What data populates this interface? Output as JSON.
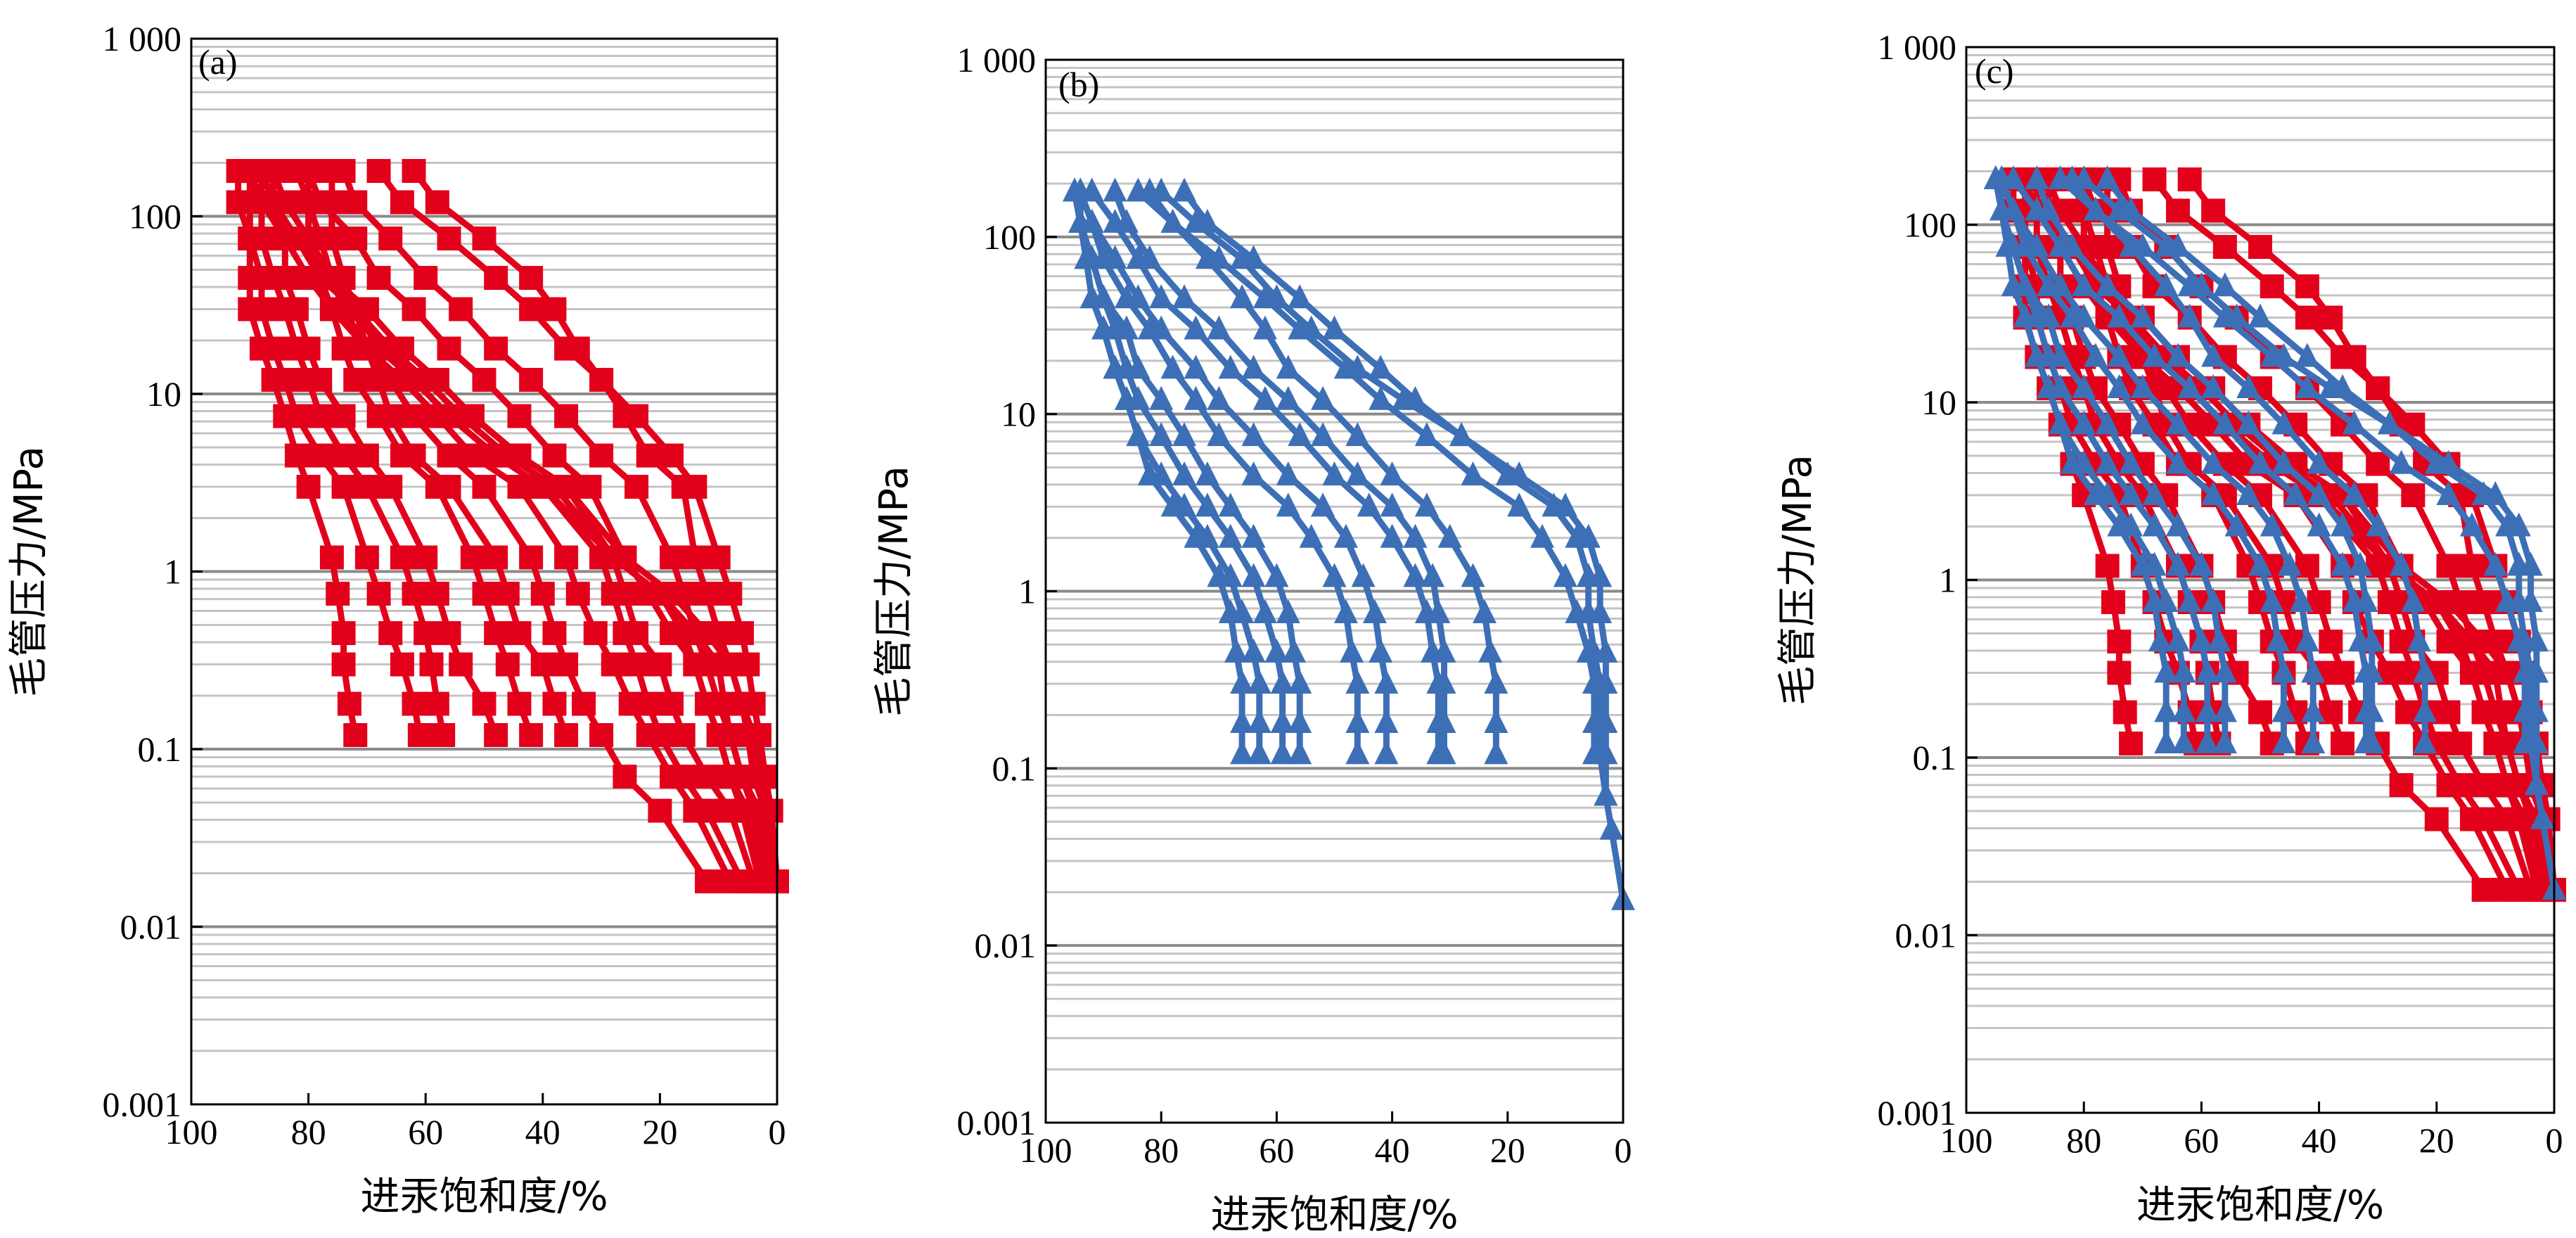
{
  "figure": {
    "colors": {
      "red_series": "#e3001b",
      "blue_series": "#3d6fb6"
    }
  },
  "chart_data": [
    {
      "type": "line",
      "panel_label": "(a)",
      "xlabel": "进汞饱和度/%",
      "ylabel": "毛管压力/MPa",
      "xlim": [
        100,
        0
      ],
      "ylim": [
        0.001,
        1000
      ],
      "y_scale": "log",
      "x_ticks": [
        "100",
        "80",
        "60",
        "40",
        "20",
        "0"
      ],
      "y_ticks": [
        "0.001",
        "0.01",
        "0.1",
        "1",
        "10",
        "100",
        "1 000"
      ],
      "grid": "horizontal",
      "marker": "square",
      "color": "#e3001b",
      "pressures": [
        0.018,
        0.045,
        0.07,
        0.12,
        0.18,
        0.3,
        0.45,
        0.75,
        1.2,
        3,
        4.5,
        7.5,
        12,
        18,
        30,
        45,
        75,
        120,
        180
      ],
      "series": [
        {
          "x": [
            0,
            2,
            4,
            5,
            6,
            8,
            10,
            12,
            14,
            16,
            22,
            26,
            30,
            34,
            38,
            42,
            50,
            58,
            62
          ]
        },
        {
          "x": [
            0,
            1,
            2,
            3,
            4,
            5,
            6,
            8,
            10,
            14,
            18,
            24,
            30,
            36,
            42,
            48,
            56,
            64,
            68
          ]
        },
        {
          "x": [
            1,
            3,
            6,
            8,
            10,
            12,
            14,
            16,
            18,
            24,
            30,
            36,
            42,
            48,
            54,
            60,
            66,
            72,
            74
          ]
        },
        {
          "x": [
            2,
            5,
            8,
            10,
            12,
            14,
            18,
            22,
            26,
            32,
            38,
            44,
            50,
            56,
            62,
            68,
            72,
            78,
            80
          ]
        },
        {
          "x": [
            4,
            8,
            12,
            16,
            18,
            20,
            24,
            26,
            28,
            36,
            44,
            52,
            58,
            64,
            70,
            76,
            80,
            84,
            86
          ]
        },
        {
          "x": [
            6,
            12,
            16,
            20,
            22,
            24,
            26,
            28,
            30,
            40,
            48,
            56,
            62,
            68,
            72,
            78,
            82,
            86,
            88
          ]
        },
        {
          "x": [
            2,
            4,
            6,
            8,
            9,
            10,
            14,
            20,
            28,
            38,
            46,
            54,
            60,
            66,
            72,
            76,
            80,
            84,
            86
          ]
        },
        {
          "x": [
            8,
            14,
            18,
            22,
            25,
            28,
            31,
            34,
            36,
            44,
            52,
            58,
            64,
            70,
            76,
            80,
            84,
            88,
            90
          ]
        },
        {
          "x": [
            0,
            2,
            3,
            4,
            6,
            8,
            12,
            18,
            26,
            36,
            44,
            52,
            58,
            64,
            70,
            76,
            82,
            88,
            91
          ]
        },
        {
          "x": [
            12,
            20,
            26,
            30,
            33,
            36,
            38,
            40,
            42,
            50,
            56,
            62,
            66,
            70,
            74,
            76,
            78,
            80,
            82
          ]
        },
        {
          "x": [
            3,
            6,
            8,
            10,
            12,
            14,
            16,
            20,
            28,
            40,
            48,
            56,
            62,
            66,
            72,
            76,
            82,
            86,
            88
          ]
        },
        {
          "x": [
            null,
            null,
            null,
            36,
            38,
            40,
            44,
            46,
            48,
            56,
            62,
            66,
            68,
            70,
            72,
            74,
            76,
            76,
            76
          ]
        },
        {
          "x": [
            null,
            null,
            null,
            42,
            44,
            46,
            48,
            50,
            52,
            58,
            64,
            68,
            72,
            74,
            76,
            78,
            80,
            80,
            80
          ]
        },
        {
          "x": [
            null,
            null,
            null,
            48,
            50,
            54,
            56,
            58,
            60,
            66,
            70,
            74,
            78,
            80,
            82,
            84,
            84,
            86,
            86
          ]
        },
        {
          "x": [
            null,
            null,
            null,
            57,
            58,
            59,
            60,
            62,
            64,
            70,
            74,
            78,
            80,
            82,
            84,
            86,
            88,
            88,
            88
          ]
        },
        {
          "x": [
            null,
            null,
            null,
            61,
            62,
            64,
            66,
            68,
            70,
            74,
            78,
            82,
            84,
            86,
            88,
            88,
            90,
            90,
            90
          ]
        },
        {
          "x": [
            null,
            null,
            null,
            72,
            73,
            74,
            74,
            75,
            76,
            80,
            82,
            84,
            86,
            88,
            90,
            90,
            90,
            92,
            92
          ]
        }
      ]
    },
    {
      "type": "line",
      "panel_label": "(b)",
      "xlabel": "进汞饱和度/%",
      "ylabel": "毛管压力/MPa",
      "xlim": [
        100,
        0
      ],
      "ylim": [
        0.001,
        1000
      ],
      "y_scale": "log",
      "x_ticks": [
        "100",
        "80",
        "60",
        "40",
        "20",
        "0"
      ],
      "y_ticks": [
        "0.001",
        "0.01",
        "0.1",
        "1",
        "10",
        "100",
        "1 000"
      ],
      "grid": "horizontal",
      "marker": "triangle",
      "color": "#3d6fb6",
      "pressures": [
        0.018,
        0.045,
        0.07,
        0.12,
        0.18,
        0.3,
        0.45,
        0.75,
        1.2,
        2,
        3,
        4.5,
        7.5,
        12,
        18,
        30,
        45,
        75,
        120,
        180
      ],
      "series": [
        {
          "x": [
            0,
            2,
            3,
            4,
            4,
            4,
            5,
            6,
            6,
            8,
            12,
            20,
            28,
            36,
            42,
            50,
            56,
            64,
            72,
            76
          ]
        },
        {
          "x": [
            null,
            null,
            3,
            3,
            3,
            3,
            3,
            4,
            4,
            6,
            10,
            18,
            28,
            38,
            46,
            54,
            60,
            66,
            74,
            80
          ]
        },
        {
          "x": [
            null,
            null,
            null,
            5,
            5,
            5,
            6,
            8,
            10,
            14,
            18,
            26,
            34,
            42,
            48,
            56,
            62,
            70,
            78,
            84
          ]
        },
        {
          "x": [
            null,
            null,
            null,
            22,
            22,
            22,
            23,
            24,
            26,
            30,
            34,
            40,
            46,
            52,
            58,
            62,
            66,
            72,
            78,
            82
          ]
        },
        {
          "x": [
            null,
            null,
            null,
            31,
            31,
            31,
            31,
            32,
            33,
            36,
            40,
            46,
            52,
            58,
            64,
            70,
            76,
            82,
            86,
            88
          ]
        },
        {
          "x": [
            null,
            null,
            null,
            32,
            32,
            32,
            33,
            34,
            36,
            40,
            44,
            50,
            56,
            62,
            68,
            74,
            80,
            84,
            88,
            92
          ]
        },
        {
          "x": [
            null,
            null,
            null,
            41,
            41,
            41,
            42,
            43,
            45,
            48,
            52,
            58,
            64,
            70,
            74,
            80,
            84,
            88,
            92,
            94
          ]
        },
        {
          "x": [
            null,
            null,
            null,
            46,
            46,
            46,
            47,
            48,
            50,
            54,
            58,
            64,
            70,
            74,
            78,
            82,
            86,
            90,
            92,
            94
          ]
        },
        {
          "x": [
            null,
            null,
            null,
            56,
            56,
            56,
            57,
            58,
            60,
            64,
            68,
            72,
            76,
            80,
            84,
            86,
            90,
            92,
            94,
            94
          ]
        },
        {
          "x": [
            null,
            null,
            null,
            59,
            59,
            59,
            60,
            62,
            64,
            68,
            72,
            76,
            80,
            84,
            86,
            88,
            90,
            92,
            94,
            95
          ]
        },
        {
          "x": [
            null,
            null,
            null,
            63,
            63,
            63,
            64,
            66,
            68,
            72,
            76,
            80,
            84,
            86,
            88,
            90,
            92,
            93,
            94,
            95
          ]
        },
        {
          "x": [
            null,
            null,
            null,
            66,
            66,
            66,
            67,
            68,
            70,
            74,
            78,
            82,
            84,
            86,
            88,
            90,
            92,
            93,
            94,
            95
          ]
        }
      ]
    },
    {
      "type": "line",
      "panel_label": "(c)",
      "xlabel": "进汞饱和度/%",
      "ylabel": "毛管压力/MPa",
      "xlim": [
        100,
        0
      ],
      "ylim": [
        0.001,
        1000
      ],
      "y_scale": "log",
      "x_ticks": [
        "100",
        "80",
        "60",
        "40",
        "20",
        "0"
      ],
      "y_ticks": [
        "0.001",
        "0.01",
        "0.1",
        "1",
        "10",
        "100",
        "1 000"
      ],
      "grid": "horizontal",
      "overlay_of": [
        "(a)",
        "(b)"
      ]
    }
  ]
}
